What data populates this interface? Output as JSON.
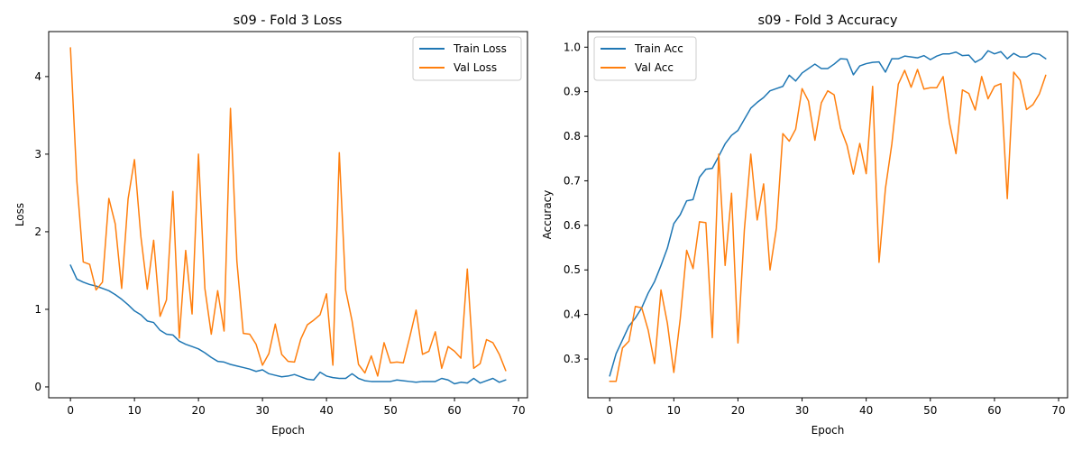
{
  "chart_data": [
    {
      "type": "line",
      "title": "s09 - Fold 3 Loss",
      "xlabel": "Epoch",
      "ylabel": "Loss",
      "xlim": [
        -3.4,
        71.4
      ],
      "ylim": [
        -0.14,
        4.58
      ],
      "xticks": [
        "0",
        "10",
        "20",
        "30",
        "40",
        "50",
        "60",
        "70"
      ],
      "yticks": [
        "0",
        "1",
        "2",
        "3",
        "4"
      ],
      "grid": false,
      "legend": "top-right",
      "series": [
        {
          "name": "Train Loss",
          "color": "#1f77b4",
          "values": [
            1.57,
            1.39,
            1.35,
            1.32,
            1.3,
            1.27,
            1.24,
            1.19,
            1.13,
            1.06,
            0.98,
            0.93,
            0.85,
            0.83,
            0.73,
            0.68,
            0.67,
            0.59,
            0.55,
            0.52,
            0.49,
            0.44,
            0.38,
            0.33,
            0.32,
            0.29,
            0.27,
            0.25,
            0.23,
            0.2,
            0.22,
            0.17,
            0.15,
            0.13,
            0.14,
            0.16,
            0.13,
            0.1,
            0.09,
            0.19,
            0.14,
            0.12,
            0.11,
            0.11,
            0.17,
            0.11,
            0.08,
            0.07,
            0.07,
            0.07,
            0.07,
            0.09,
            0.08,
            0.07,
            0.06,
            0.07,
            0.07,
            0.07,
            0.11,
            0.09,
            0.04,
            0.06,
            0.05,
            0.11,
            0.05,
            0.08,
            0.11,
            0.06,
            0.09
          ]
        },
        {
          "name": "Val Loss",
          "color": "#ff7f0e",
          "values": [
            4.37,
            2.65,
            1.61,
            1.58,
            1.25,
            1.35,
            2.43,
            2.1,
            1.27,
            2.42,
            2.93,
            1.94,
            1.26,
            1.89,
            0.91,
            1.12,
            2.52,
            0.63,
            1.76,
            0.94,
            3.0,
            1.27,
            0.68,
            1.24,
            0.72,
            3.59,
            1.62,
            0.69,
            0.68,
            0.55,
            0.28,
            0.43,
            0.81,
            0.42,
            0.33,
            0.32,
            0.62,
            0.8,
            0.86,
            0.93,
            1.2,
            0.28,
            3.02,
            1.25,
            0.85,
            0.29,
            0.18,
            0.4,
            0.14,
            0.57,
            0.31,
            0.32,
            0.31,
            0.64,
            0.99,
            0.42,
            0.46,
            0.71,
            0.24,
            0.52,
            0.46,
            0.37,
            1.52,
            0.24,
            0.3,
            0.61,
            0.57,
            0.42,
            0.21
          ]
        }
      ]
    },
    {
      "type": "line",
      "title": "s09 - Fold 3 Accuracy",
      "xlabel": "Epoch",
      "ylabel": "Accuracy",
      "xlim": [
        -3.4,
        71.4
      ],
      "ylim": [
        0.213,
        1.035
      ],
      "xticks": [
        "0",
        "10",
        "20",
        "30",
        "40",
        "50",
        "60",
        "70"
      ],
      "yticks": [
        "0.3",
        "0.4",
        "0.5",
        "0.6",
        "0.7",
        "0.8",
        "0.9",
        "1.0"
      ],
      "grid": false,
      "legend": "top-left",
      "series": [
        {
          "name": "Train Acc",
          "color": "#1f77b4",
          "values": [
            0.262,
            0.312,
            0.343,
            0.374,
            0.392,
            0.415,
            0.448,
            0.474,
            0.51,
            0.549,
            0.604,
            0.624,
            0.655,
            0.658,
            0.708,
            0.726,
            0.728,
            0.755,
            0.783,
            0.802,
            0.813,
            0.838,
            0.863,
            0.876,
            0.887,
            0.902,
            0.907,
            0.912,
            0.937,
            0.924,
            0.942,
            0.952,
            0.962,
            0.952,
            0.952,
            0.962,
            0.974,
            0.973,
            0.938,
            0.958,
            0.963,
            0.966,
            0.967,
            0.944,
            0.974,
            0.974,
            0.98,
            0.978,
            0.976,
            0.981,
            0.972,
            0.98,
            0.985,
            0.985,
            0.989,
            0.981,
            0.982,
            0.966,
            0.974,
            0.992,
            0.985,
            0.99,
            0.974,
            0.986,
            0.978,
            0.978,
            0.986,
            0.984,
            0.974
          ]
        },
        {
          "name": "Val Acc",
          "color": "#ff7f0e",
          "values": [
            0.25,
            0.25,
            0.325,
            0.34,
            0.418,
            0.415,
            0.365,
            0.29,
            0.455,
            0.38,
            0.27,
            0.39,
            0.544,
            0.503,
            0.608,
            0.606,
            0.348,
            0.76,
            0.51,
            0.672,
            0.336,
            0.59,
            0.76,
            0.612,
            0.693,
            0.5,
            0.594,
            0.806,
            0.789,
            0.816,
            0.907,
            0.879,
            0.791,
            0.875,
            0.902,
            0.893,
            0.818,
            0.78,
            0.715,
            0.784,
            0.716,
            0.912,
            0.517,
            0.683,
            0.783,
            0.917,
            0.948,
            0.91,
            0.95,
            0.906,
            0.909,
            0.909,
            0.934,
            0.829,
            0.761,
            0.904,
            0.896,
            0.859,
            0.934,
            0.884,
            0.912,
            0.918,
            0.66,
            0.944,
            0.926,
            0.86,
            0.871,
            0.895,
            0.937
          ]
        }
      ]
    }
  ]
}
